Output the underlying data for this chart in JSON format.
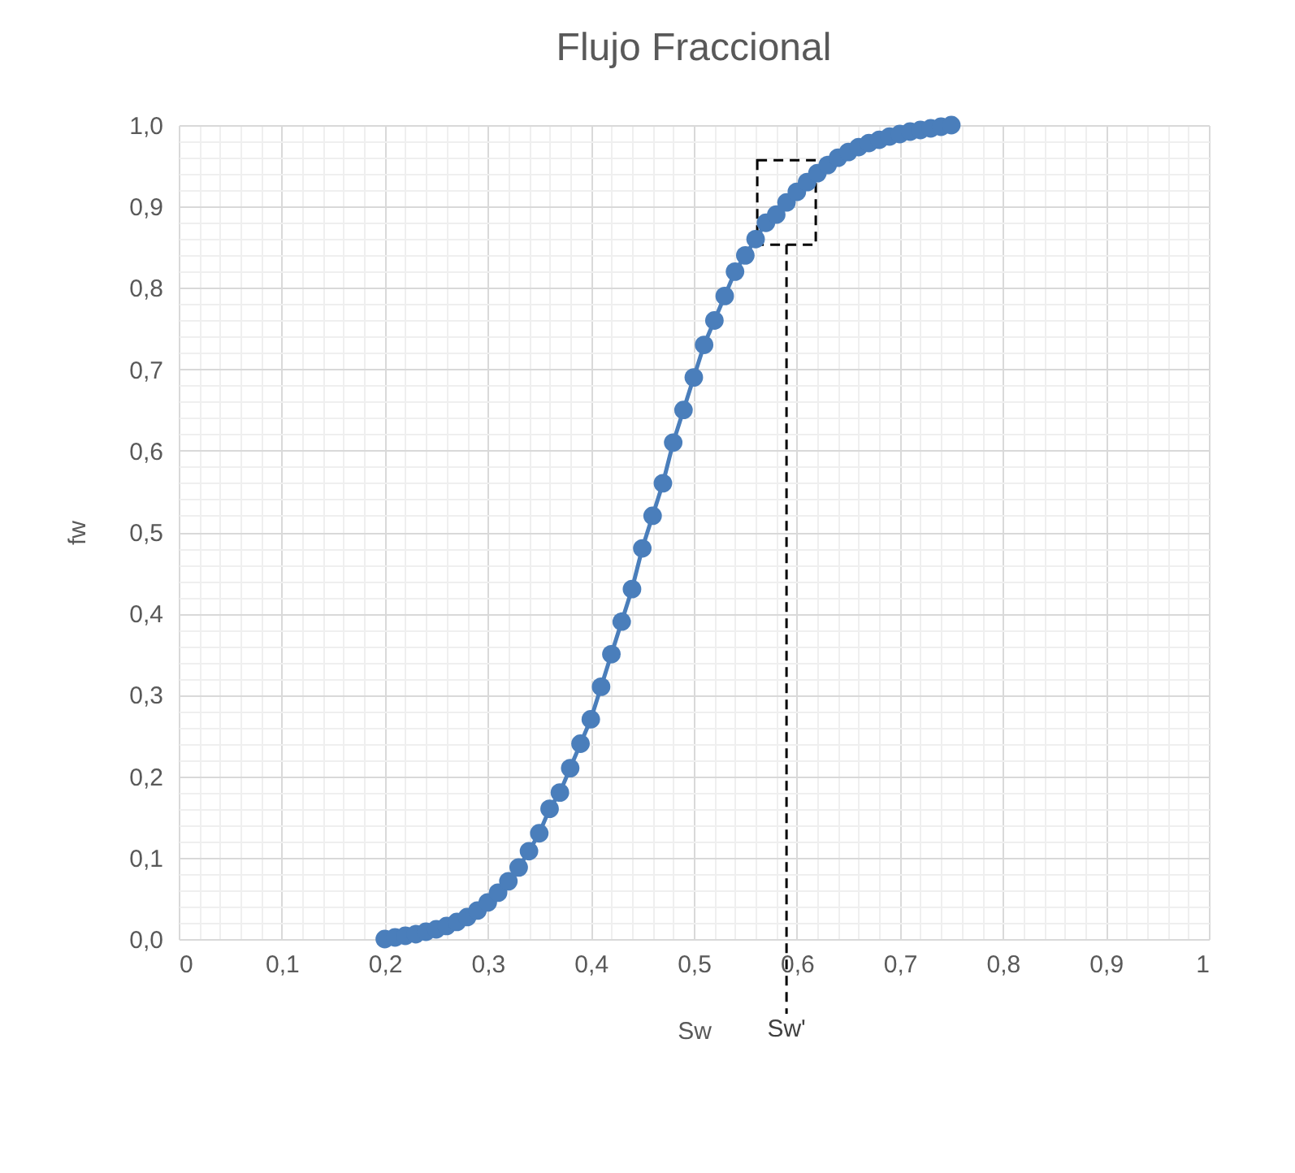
{
  "chart_data": {
    "type": "line",
    "title": "Flujo Fraccional",
    "xlabel": "Sw",
    "ylabel": "fw",
    "x": [
      0.2,
      0.21,
      0.22,
      0.23,
      0.24,
      0.25,
      0.26,
      0.27,
      0.28,
      0.29,
      0.3,
      0.31,
      0.32,
      0.33,
      0.34,
      0.35,
      0.36,
      0.37,
      0.38,
      0.39,
      0.4,
      0.41,
      0.42,
      0.43,
      0.44,
      0.45,
      0.46,
      0.47,
      0.48,
      0.49,
      0.5,
      0.51,
      0.52,
      0.53,
      0.54,
      0.55,
      0.56,
      0.57,
      0.58,
      0.59,
      0.6,
      0.61,
      0.62,
      0.63,
      0.64,
      0.65,
      0.66,
      0.67,
      0.68,
      0.69,
      0.7,
      0.71,
      0.72,
      0.73,
      0.74,
      0.75
    ],
    "series": [
      {
        "color": "#4a7ebb",
        "values": [
          0.0,
          0.002,
          0.004,
          0.006,
          0.009,
          0.012,
          0.016,
          0.021,
          0.027,
          0.035,
          0.045,
          0.057,
          0.071,
          0.088,
          0.108,
          0.13,
          0.16,
          0.18,
          0.21,
          0.24,
          0.27,
          0.31,
          0.35,
          0.39,
          0.43,
          0.48,
          0.52,
          0.56,
          0.61,
          0.65,
          0.69,
          0.73,
          0.76,
          0.79,
          0.82,
          0.84,
          0.86,
          0.88,
          0.89,
          0.905,
          0.918,
          0.93,
          0.941,
          0.951,
          0.96,
          0.967,
          0.973,
          0.978,
          0.982,
          0.986,
          0.989,
          0.992,
          0.994,
          0.996,
          0.998,
          1.0
        ]
      }
    ],
    "xlim": [
      0,
      1
    ],
    "ylim": [
      0,
      1
    ],
    "xticks": [
      0,
      {
        "value": 0.1,
        "label": "0,1"
      },
      {
        "value": 0.2,
        "label": "0,2"
      },
      {
        "value": 0.3,
        "label": "0,3"
      },
      {
        "value": 0.4,
        "label": "0,4"
      },
      {
        "value": 0.5,
        "label": "0,5"
      },
      {
        "value": 0.6,
        "label": "0,6"
      },
      {
        "value": 0.7,
        "label": "0,7"
      },
      {
        "value": 0.8,
        "label": "0,8"
      },
      {
        "value": 0.9,
        "label": "0,9"
      },
      1
    ],
    "yticks": [
      {
        "value": 0,
        "label": "0,0"
      },
      {
        "value": 0.1,
        "label": "0,1"
      },
      {
        "value": 0.2,
        "label": "0,2"
      },
      {
        "value": 0.3,
        "label": "0,3"
      },
      {
        "value": 0.4,
        "label": "0,4"
      },
      {
        "value": 0.5,
        "label": "0,5"
      },
      {
        "value": 0.6,
        "label": "0,6"
      },
      {
        "value": 0.7,
        "label": "0,7"
      },
      {
        "value": 0.8,
        "label": "0,8"
      },
      {
        "value": 0.9,
        "label": "0,9"
      },
      {
        "value": 1,
        "label": "1,0"
      }
    ],
    "ref_lines": [
      {
        "axis": "x",
        "value": 0.59,
        "label": "Sw'",
        "line_style": "dashed"
      }
    ],
    "grid": true,
    "marker": "circle",
    "line_style": "solid"
  }
}
